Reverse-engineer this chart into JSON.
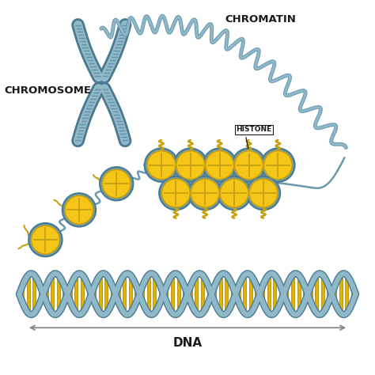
{
  "background_color": "#ffffff",
  "chrom_light": "#8fb8c8",
  "chrom_mid": "#6a9ab0",
  "chrom_dark": "#4a7a90",
  "hist_yellow": "#f5c518",
  "hist_yellow_dark": "#c8a010",
  "hist_ring": "#6a9ab0",
  "hist_ring_dark": "#4a7a90",
  "dna_blue": "#8fb8c8",
  "dna_blue_dark": "#4a7a90",
  "dna_yellow": "#e8b800",
  "dna_yellow_dark": "#b08800",
  "label_black": "#1a1a1a",
  "arrow_gray": "#888888",
  "title_chromosome": "CHROMOSOME",
  "title_chromatin": "CHROMATIN",
  "title_histone": "HISTONE",
  "title_dna": "DNA",
  "fig_width": 4.74,
  "fig_height": 4.74,
  "dpi": 100
}
